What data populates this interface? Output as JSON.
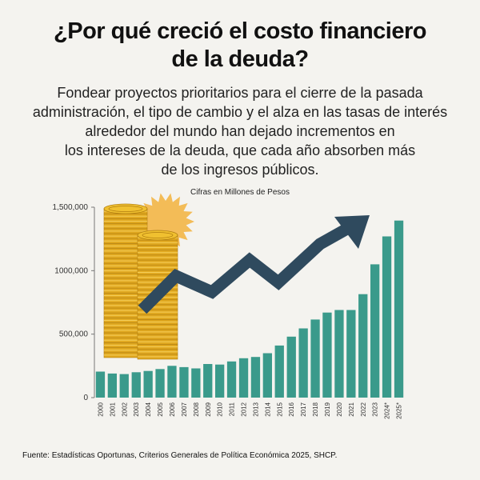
{
  "header": {
    "title_line1": "¿Por qué creció el costo financiero",
    "title_line2": "de la deuda?",
    "subtitle_lines": [
      "Fondear proyectos prioritarios para el cierre de la pasada",
      "administración, el tipo de cambio y el alza en las tasas de interés",
      "alrededor del mundo han dejado incrementos en",
      "los intereses de la deuda, que cada año absorben más",
      "de los ingresos públicos."
    ]
  },
  "colors": {
    "bar": "#3a9a8b",
    "arrow": "#2f4a5e",
    "coin": "#e0a820",
    "sun": "#f2b13c"
  },
  "chart_data": {
    "type": "bar",
    "title": "Cifras en Millones de Pesos",
    "xlabel": "",
    "ylabel": "",
    "ylim": [
      0,
      1500000
    ],
    "yticks": [
      0,
      500000,
      1000000,
      1500000
    ],
    "ytick_labels": [
      "0",
      "500,000",
      "1000,000",
      "1,500,000"
    ],
    "categories": [
      "2000",
      "2001",
      "2002",
      "2003",
      "2004",
      "2005",
      "2006",
      "2007",
      "2008",
      "2009",
      "2010",
      "2011",
      "2012",
      "2013",
      "2014",
      "2015",
      "2016",
      "2017",
      "2018",
      "2019",
      "2020",
      "2021",
      "2022",
      "2023",
      "2024*",
      "2025*"
    ],
    "values": [
      205000,
      190000,
      185000,
      200000,
      210000,
      225000,
      250000,
      240000,
      230000,
      265000,
      260000,
      285000,
      310000,
      320000,
      350000,
      410000,
      480000,
      545000,
      615000,
      670000,
      690000,
      690000,
      815000,
      1050000,
      1270000,
      1395000
    ],
    "grid": false,
    "legend": "none",
    "decorations": [
      "coin-stacks",
      "rising-arrow"
    ]
  },
  "footer": {
    "source": "Fuente: Estadísticas Oportunas, Criterios Generales de Política Económica 2025, SHCP."
  }
}
